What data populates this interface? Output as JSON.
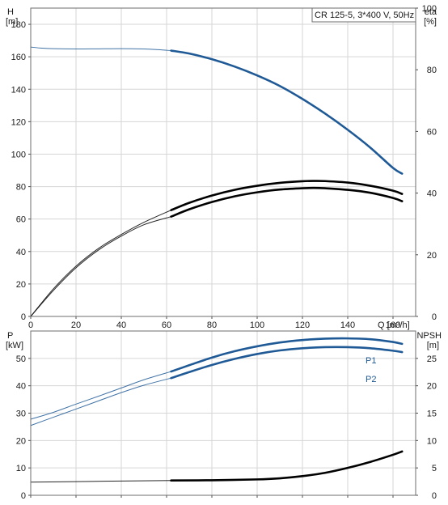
{
  "chart_data": [
    {
      "type": "line",
      "panel": "head-efficiency",
      "y_label": "H",
      "y_unit": "[m]",
      "y2_label": "eta",
      "y2_unit": "[%]",
      "x_label": "Q [m³/h]",
      "legend_text": "CR 125-5, 3*400 V, 50Hz",
      "xlim": [
        0,
        170
      ],
      "ylim": [
        0,
        190
      ],
      "y2lim": [
        0,
        100
      ],
      "x_ticks": [
        "0",
        "20",
        "40",
        "60",
        "80",
        "100",
        "120",
        "140",
        "160"
      ],
      "y_ticks": [
        "0",
        "20",
        "40",
        "60",
        "80",
        "100",
        "120",
        "140",
        "160",
        "180"
      ],
      "y2_ticks": [
        "0",
        "20",
        "40",
        "60",
        "80",
        "100"
      ],
      "grid": true,
      "series": [
        {
          "key": "head",
          "color": "#1f5a96",
          "axis": "y",
          "x": [
            0,
            5,
            10,
            20,
            30,
            40,
            50,
            55,
            62,
            70,
            80,
            90,
            100,
            110,
            120,
            130,
            140,
            150,
            160,
            164
          ],
          "y": [
            166,
            165.3,
            165,
            164.8,
            164.9,
            165,
            164.8,
            164.5,
            163.8,
            162,
            158.5,
            154,
            148.5,
            142,
            134,
            125,
            115,
            104,
            91.5,
            88
          ]
        },
        {
          "key": "eta-upper",
          "color": "#000000",
          "axis": "y",
          "x": [
            0,
            10,
            20,
            30,
            40,
            50,
            62,
            70,
            80,
            90,
            100,
            110,
            120,
            125,
            130,
            140,
            150,
            160,
            164
          ],
          "y": [
            0,
            17,
            31,
            42,
            50.5,
            58,
            65.5,
            70,
            74.5,
            78,
            80.5,
            82.3,
            83.3,
            83.5,
            83.4,
            82.5,
            80.5,
            77.5,
            75.5
          ]
        },
        {
          "key": "eta-lower",
          "color": "#000000",
          "axis": "y",
          "x": [
            0,
            10,
            20,
            30,
            40,
            50,
            62,
            70,
            80,
            90,
            100,
            110,
            120,
            125,
            130,
            140,
            150,
            160,
            164
          ],
          "y": [
            0,
            16,
            30,
            41,
            49.5,
            56.5,
            61.5,
            66,
            70.5,
            74,
            76.5,
            78.2,
            79,
            79.2,
            79,
            78,
            76.2,
            73,
            71
          ]
        }
      ]
    },
    {
      "type": "line",
      "panel": "power-npsh",
      "y_label": "P",
      "y_unit": "[kW]",
      "y2_label": "NPSH",
      "y2_unit": "[m]",
      "xlim": [
        0,
        170
      ],
      "ylim": [
        0,
        60
      ],
      "y2lim": [
        0,
        30
      ],
      "y_ticks": [
        "0",
        "10",
        "20",
        "30",
        "40",
        "50"
      ],
      "y2_ticks": [
        "0",
        "5",
        "10",
        "15",
        "20",
        "25"
      ],
      "grid": true,
      "series": [
        {
          "name": "P1",
          "color": "#1f5a96",
          "axis": "y",
          "x": [
            0,
            10,
            20,
            30,
            40,
            50,
            62,
            70,
            80,
            90,
            100,
            110,
            120,
            130,
            140,
            150,
            160,
            164
          ],
          "y": [
            27.8,
            30.3,
            33.3,
            36.2,
            39.2,
            42.2,
            45.2,
            47.5,
            50.3,
            52.6,
            54.4,
            55.8,
            56.7,
            57.2,
            57.3,
            57,
            56,
            55.3
          ]
        },
        {
          "name": "P2",
          "color": "#1f5a96",
          "axis": "y",
          "x": [
            0,
            10,
            20,
            30,
            40,
            50,
            62,
            70,
            80,
            90,
            100,
            110,
            120,
            130,
            140,
            150,
            160,
            164
          ],
          "y": [
            25.5,
            28.5,
            31.5,
            34.5,
            37.5,
            40.2,
            42.8,
            45,
            47.6,
            49.8,
            51.6,
            52.9,
            53.7,
            54.1,
            54.1,
            53.7,
            52.8,
            52.3
          ]
        },
        {
          "key": "npsh",
          "color": "#000000",
          "axis": "y2",
          "x": [
            0,
            20,
            40,
            62,
            80,
            100,
            110,
            120,
            130,
            140,
            150,
            160,
            164
          ],
          "y": [
            2.4,
            2.5,
            2.6,
            2.7,
            2.75,
            2.9,
            3.1,
            3.5,
            4.1,
            5,
            6.1,
            7.4,
            8
          ]
        }
      ]
    }
  ]
}
